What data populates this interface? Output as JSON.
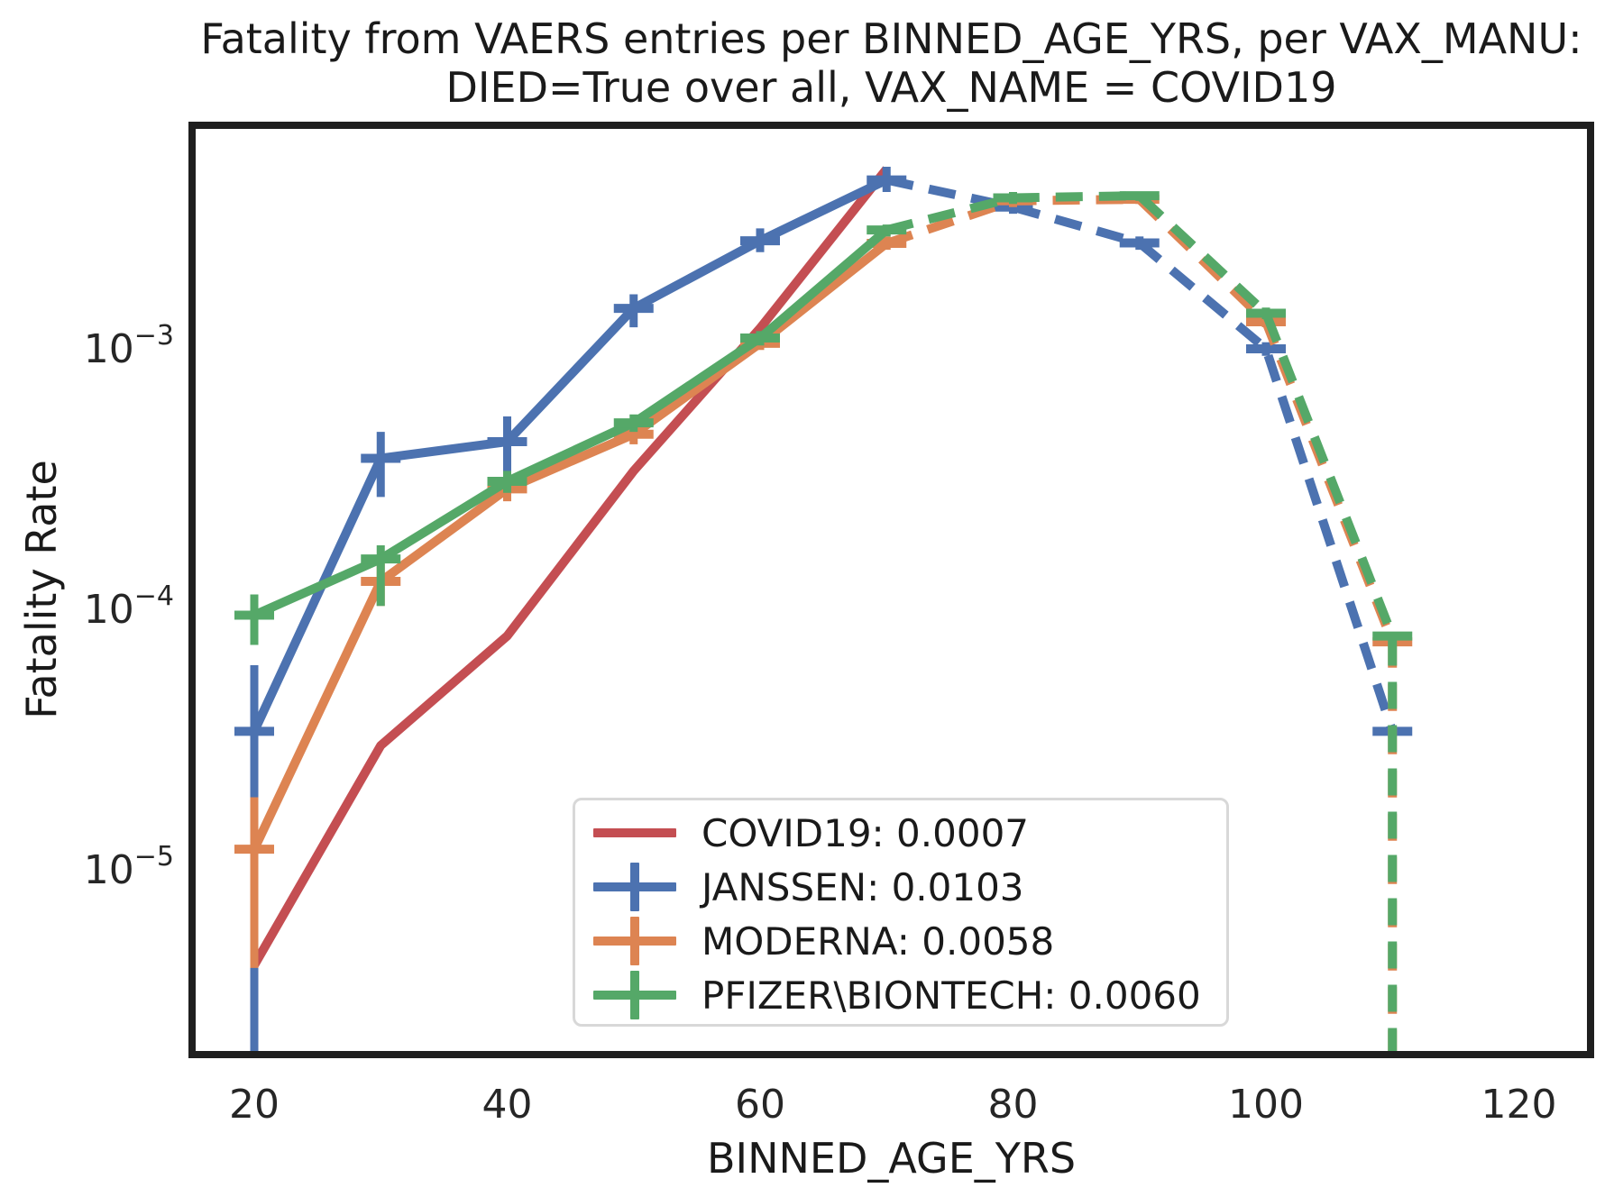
{
  "title": {
    "line1": "Fatality from VAERS entries per BINNED_AGE_YRS, per VAX_MANU:",
    "line2": "DIED=True over all, VAX_NAME = COVID19"
  },
  "chart_data": {
    "type": "line",
    "title": "Fatality from VAERS entries per BINNED_AGE_YRS, per VAX_MANU: DIED=True over all, VAX_NAME = COVID19",
    "xlabel": "BINNED_AGE_YRS",
    "ylabel": "Fatality Rate",
    "yscale": "log",
    "grid": false,
    "x_ticks": [
      20,
      40,
      60,
      80,
      100,
      120
    ],
    "y_ticks": [
      {
        "base": "10",
        "exponent": "−3",
        "value": 0.001
      },
      {
        "base": "10",
        "exponent": "−4",
        "value": 0.0001
      },
      {
        "base": "10",
        "exponent": "−5",
        "value": 1e-05
      }
    ],
    "xlim": [
      15,
      126
    ],
    "ylim": [
      1.9e-06,
      0.0072
    ],
    "solid_until_x": 70,
    "dashed_after_x": 70,
    "legend_position": "lower center",
    "series": [
      {
        "name": "COVID19",
        "legend_label": "COVID19: 0.0007",
        "overall_rate": 0.0007,
        "color": "#c44e52",
        "has_markers": false,
        "has_error_bars": false,
        "drop_to_zero": false,
        "x": [
          20,
          30,
          40,
          50,
          60,
          70
        ],
        "y": [
          4.3e-06,
          3e-05,
          7.9e-05,
          0.00034,
          0.0012,
          0.0049
        ]
      },
      {
        "name": "JANSSEN",
        "legend_label": "JANSSEN: 0.0103",
        "overall_rate": 0.0103,
        "color": "#4c72b0",
        "has_markers": true,
        "has_error_bars": true,
        "drop_to_zero": false,
        "x": [
          20,
          30,
          40,
          50,
          60,
          70,
          80,
          90,
          100,
          110
        ],
        "y": [
          3.4e-05,
          0.00038,
          0.00044,
          0.00143,
          0.0026,
          0.00445,
          0.0035,
          0.00255,
          0.001,
          3.4e-05
        ],
        "err_hi": [
          6.1e-05,
          0.00048,
          0.00055,
          0.00162,
          0.0029,
          0.005,
          0.0037,
          0.0027,
          0.00106,
          null
        ],
        "err_lo": [
          1.5e-06,
          0.00027,
          0.00027,
          0.00121,
          0.00235,
          0.004,
          0.0033,
          0.0024,
          0.00094,
          null
        ]
      },
      {
        "name": "MODERNA",
        "legend_label": "MODERNA: 0.0058",
        "overall_rate": 0.0058,
        "color": "#dd8452",
        "has_markers": true,
        "has_error_bars": true,
        "drop_to_zero": true,
        "x": [
          20,
          30,
          40,
          50,
          60,
          70,
          80,
          90,
          100,
          110
        ],
        "y": [
          1.2e-05,
          0.000128,
          0.00029,
          0.00047,
          0.00105,
          0.00254,
          0.0037,
          0.00375,
          0.00127,
          7.5e-05
        ],
        "err_hi": [
          1.9e-05,
          0.00015,
          0.00032,
          0.00051,
          0.00112,
          0.0027,
          0.0039,
          0.0039,
          0.00133,
          null
        ],
        "err_lo": [
          4.2e-06,
          0.000103,
          0.00026,
          0.00043,
          0.00099,
          0.0024,
          0.0035,
          0.0036,
          0.00121,
          null
        ]
      },
      {
        "name": "PFIZER\\BIONTECH",
        "legend_label": "PFIZER\\BIONTECH: 0.0060",
        "overall_rate": 0.006,
        "color": "#55a868",
        "has_markers": true,
        "has_error_bars": true,
        "drop_to_zero": true,
        "x": [
          20,
          30,
          40,
          50,
          60,
          70,
          80,
          90,
          100,
          110
        ],
        "y": [
          9.5e-05,
          0.000156,
          0.00031,
          0.00052,
          0.0011,
          0.00286,
          0.0038,
          0.00387,
          0.00137,
          7.9e-05
        ],
        "err_hi": [
          0.000114,
          0.000176,
          0.00034,
          0.00056,
          0.00117,
          0.003,
          0.004,
          0.004,
          0.00144,
          null
        ],
        "err_lo": [
          7.3e-05,
          0.000103,
          0.00028,
          0.00048,
          0.00103,
          0.0027,
          0.0036,
          0.0037,
          0.0013,
          null
        ]
      }
    ]
  }
}
